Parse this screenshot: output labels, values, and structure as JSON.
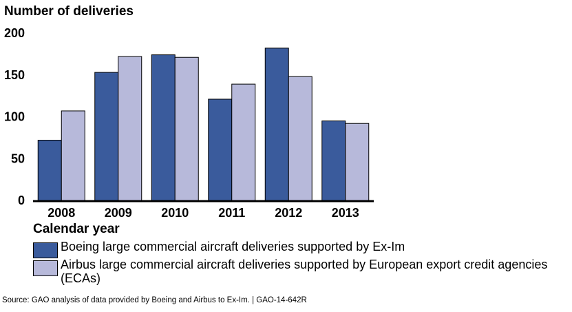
{
  "chart_data": {
    "type": "bar",
    "ylabel": "Number of deliveries",
    "xlabel": "Calendar year",
    "categories": [
      "2008",
      "2009",
      "2010",
      "2011",
      "2012",
      "2013"
    ],
    "ylim": [
      0,
      200
    ],
    "yticks": [
      0,
      50,
      100,
      150,
      200
    ],
    "grid": false,
    "legend_placement": "bottom",
    "series": [
      {
        "name": "Boeing large commercial aircraft deliveries supported by Ex-Im",
        "color": "#3a5b9c",
        "values": [
          72,
          153,
          174,
          121,
          182,
          95
        ]
      },
      {
        "name": "Airbus large commercial aircraft deliveries supported by European export credit agencies (ECAs)",
        "color": "#b7b9da",
        "values": [
          107,
          172,
          171,
          139,
          148,
          92
        ]
      }
    ]
  },
  "source": "Source: GAO analysis of data provided by Boeing and Airbus to Ex-Im.  |  GAO-14-642R"
}
